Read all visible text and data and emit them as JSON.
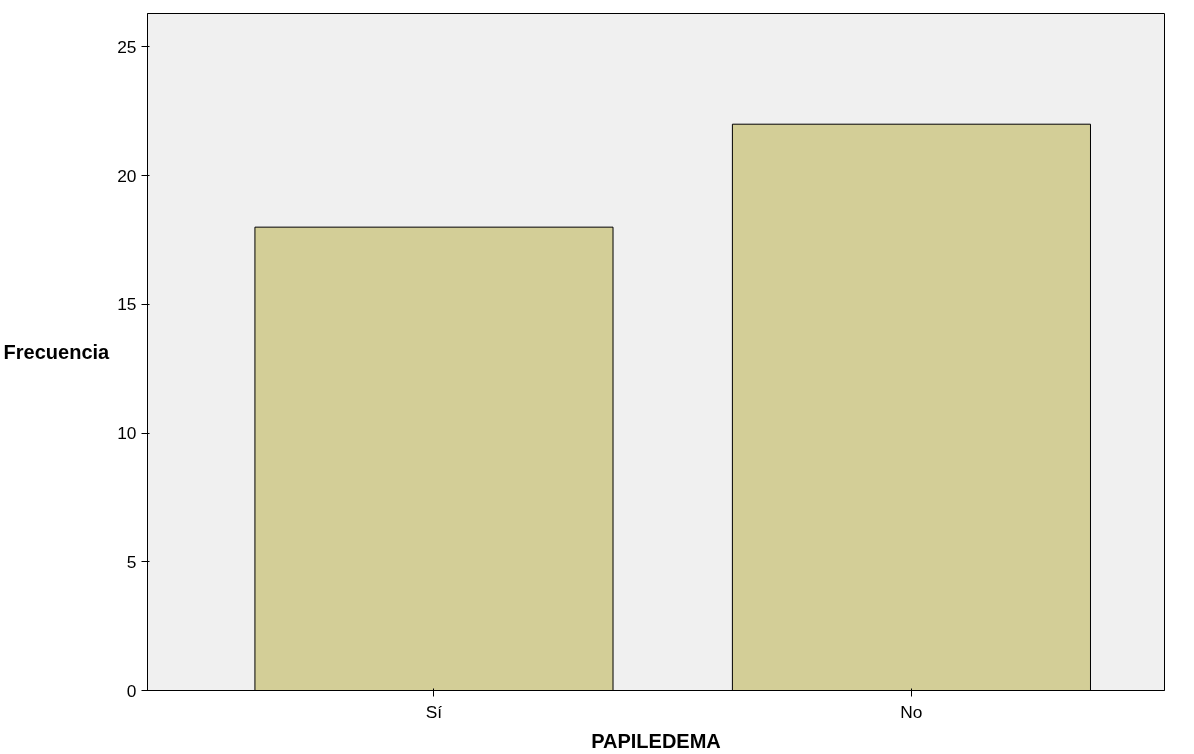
{
  "chart_data": {
    "type": "bar",
    "xlabel": "PAPILEDEMA",
    "ylabel": "Frecuencia",
    "categories": [
      "Sí",
      "No"
    ],
    "values": [
      18,
      22
    ],
    "color": "#d3ce97",
    "ylim": [
      0,
      26.3
    ],
    "yticks": [
      0,
      5,
      10,
      15,
      20,
      25
    ],
    "grid": false
  }
}
